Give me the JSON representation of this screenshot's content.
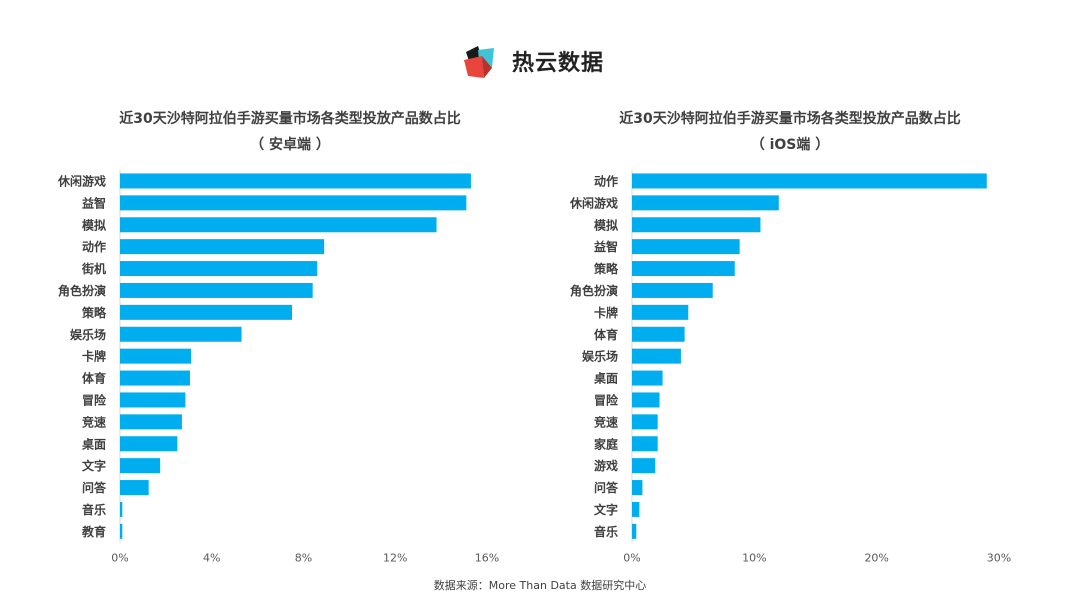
{
  "logo": {
    "text": "热云数据",
    "icon": "reyun-logo-icon"
  },
  "colors": {
    "bar": "#00AEEF",
    "axis": "#D9D9D9",
    "tick": "#595959",
    "label": "#404040"
  },
  "chart_data": [
    {
      "type": "bar",
      "orientation": "horizontal",
      "title": "近30天沙特阿拉伯手游买量市场各类型投放产品数占比",
      "subtitle": "（ 安卓端 ）",
      "categories": [
        "休闲游戏",
        "益智",
        "模拟",
        "动作",
        "街机",
        "角色扮演",
        "策略",
        "娱乐场",
        "卡牌",
        "体育",
        "冒险",
        "竞速",
        "桌面",
        "文字",
        "问答",
        "音乐",
        "教育"
      ],
      "values": [
        15.3,
        15.1,
        13.8,
        8.9,
        8.6,
        8.4,
        7.5,
        5.3,
        3.1,
        3.05,
        2.85,
        2.7,
        2.5,
        1.75,
        1.25,
        0.1,
        0.1
      ],
      "unit": "%",
      "xlim": [
        0,
        16
      ],
      "xticks": [
        "0%",
        "4%",
        "8%",
        "12%",
        "16%"
      ],
      "grid": false
    },
    {
      "type": "bar",
      "orientation": "horizontal",
      "title": "近30天沙特阿拉伯手游买量市场各类型投放产品数占比",
      "subtitle": "（ iOS端 ）",
      "categories": [
        "动作",
        "休闲游戏",
        "模拟",
        "益智",
        "策略",
        "角色扮演",
        "卡牌",
        "体育",
        "娱乐场",
        "桌面",
        "冒险",
        "竞速",
        "家庭",
        "游戏",
        "问答",
        "文字",
        "音乐"
      ],
      "values": [
        29.0,
        12.0,
        10.5,
        8.8,
        8.4,
        6.6,
        4.6,
        4.3,
        4.0,
        2.5,
        2.25,
        2.1,
        2.1,
        1.9,
        0.85,
        0.6,
        0.35
      ],
      "unit": "%",
      "xlim": [
        0,
        30
      ],
      "xticks": [
        "0%",
        "10%",
        "20%",
        "30%"
      ],
      "grid": false
    }
  ],
  "footer": {
    "source": "数据来源：More Than Data 数据研究中心"
  }
}
